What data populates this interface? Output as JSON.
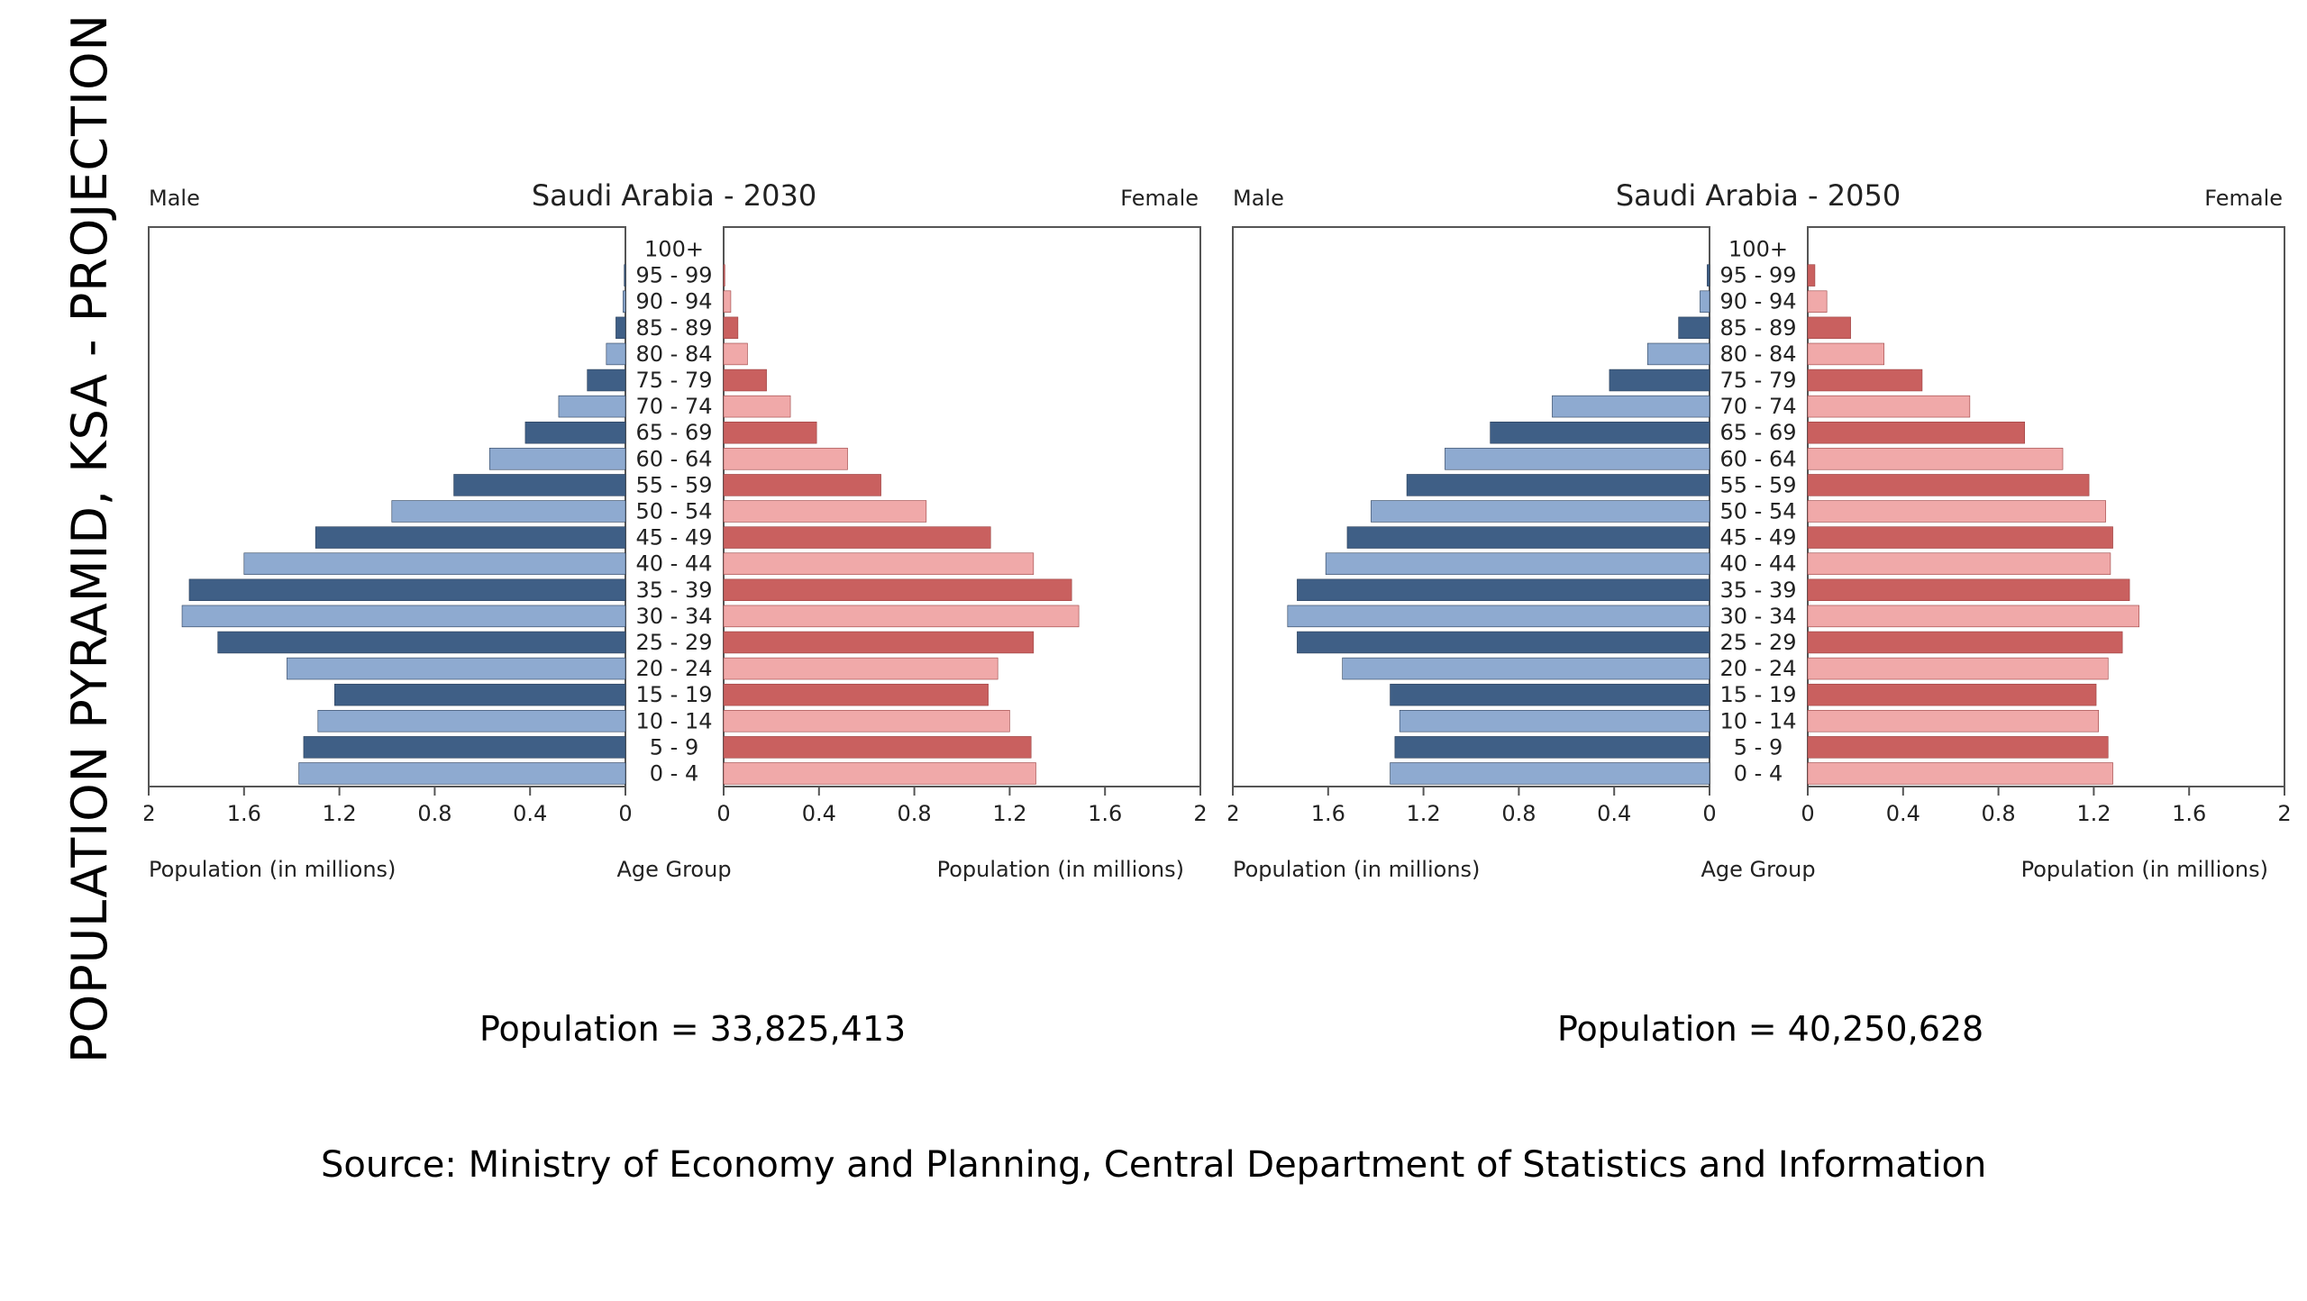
{
  "side_title": "POPULATION PYRAMID, KSA - PROJECTION",
  "source": "Source: Ministry of Economy and Planning, Central Department of Statistics and Information",
  "colors": {
    "male_dark": "#3f5f86",
    "male_light": "#8eaad0",
    "female_dark": "#c9605f",
    "female_light": "#f0a9a9"
  },
  "chart_data": [
    {
      "type": "bar",
      "title": "Saudi Arabia - 2030",
      "left_label": "Male",
      "right_label": "Female",
      "xlabel_left": "Population (in millions)",
      "xlabel_center": "Age Group",
      "xlabel_right": "Population (in millions)",
      "xlim": [
        0,
        2
      ],
      "xticks": [
        "2",
        "1.6",
        "1.2",
        "0.8",
        "0.4",
        "0"
      ],
      "xticks_right": [
        "0",
        "0.4",
        "0.8",
        "1.2",
        "1.6",
        "2"
      ],
      "categories": [
        "100+",
        "95 - 99",
        "90 - 94",
        "85 - 89",
        "80 - 84",
        "75 - 79",
        "70 - 74",
        "65 - 69",
        "60 - 64",
        "55 - 59",
        "50 - 54",
        "45 - 49",
        "40 - 44",
        "35 - 39",
        "30 - 34",
        "25 - 29",
        "20 - 24",
        "15 - 19",
        "10 - 14",
        "5 - 9",
        "0 - 4"
      ],
      "series": [
        {
          "name": "Male",
          "values": [
            0.0,
            0.005,
            0.01,
            0.04,
            0.08,
            0.16,
            0.28,
            0.42,
            0.57,
            0.72,
            0.98,
            1.3,
            1.6,
            1.83,
            1.86,
            1.71,
            1.42,
            1.22,
            1.29,
            1.35,
            1.37
          ]
        },
        {
          "name": "Female",
          "values": [
            0.0,
            0.005,
            0.03,
            0.06,
            0.1,
            0.18,
            0.28,
            0.39,
            0.52,
            0.66,
            0.85,
            1.12,
            1.3,
            1.46,
            1.49,
            1.3,
            1.15,
            1.11,
            1.2,
            1.29,
            1.31
          ]
        }
      ],
      "total_text": "Population = 33,825,413"
    },
    {
      "type": "bar",
      "title": "Saudi Arabia - 2050",
      "left_label": "Male",
      "right_label": "Female",
      "xlabel_left": "Population (in millions)",
      "xlabel_center": "Age Group",
      "xlabel_right": "Population (in millions)",
      "xlim": [
        0,
        2
      ],
      "xticks": [
        "2",
        "1.6",
        "1.2",
        "0.8",
        "0.4",
        "0"
      ],
      "xticks_right": [
        "0",
        "0.4",
        "0.8",
        "1.2",
        "1.6",
        "2"
      ],
      "categories": [
        "100+",
        "95 - 99",
        "90 - 94",
        "85 - 89",
        "80 - 84",
        "75 - 79",
        "70 - 74",
        "65 - 69",
        "60 - 64",
        "55 - 59",
        "50 - 54",
        "45 - 49",
        "40 - 44",
        "35 - 39",
        "30 - 34",
        "25 - 29",
        "20 - 24",
        "15 - 19",
        "10 - 14",
        "5 - 9",
        "0 - 4"
      ],
      "series": [
        {
          "name": "Male",
          "values": [
            0.0,
            0.01,
            0.04,
            0.13,
            0.26,
            0.42,
            0.66,
            0.92,
            1.11,
            1.27,
            1.42,
            1.52,
            1.61,
            1.73,
            1.77,
            1.73,
            1.54,
            1.34,
            1.3,
            1.32,
            1.34
          ]
        },
        {
          "name": "Female",
          "values": [
            0.0,
            0.03,
            0.08,
            0.18,
            0.32,
            0.48,
            0.68,
            0.91,
            1.07,
            1.18,
            1.25,
            1.28,
            1.27,
            1.35,
            1.39,
            1.32,
            1.26,
            1.21,
            1.22,
            1.26,
            1.28
          ]
        }
      ],
      "total_text": "Population = 40,250,628"
    }
  ]
}
